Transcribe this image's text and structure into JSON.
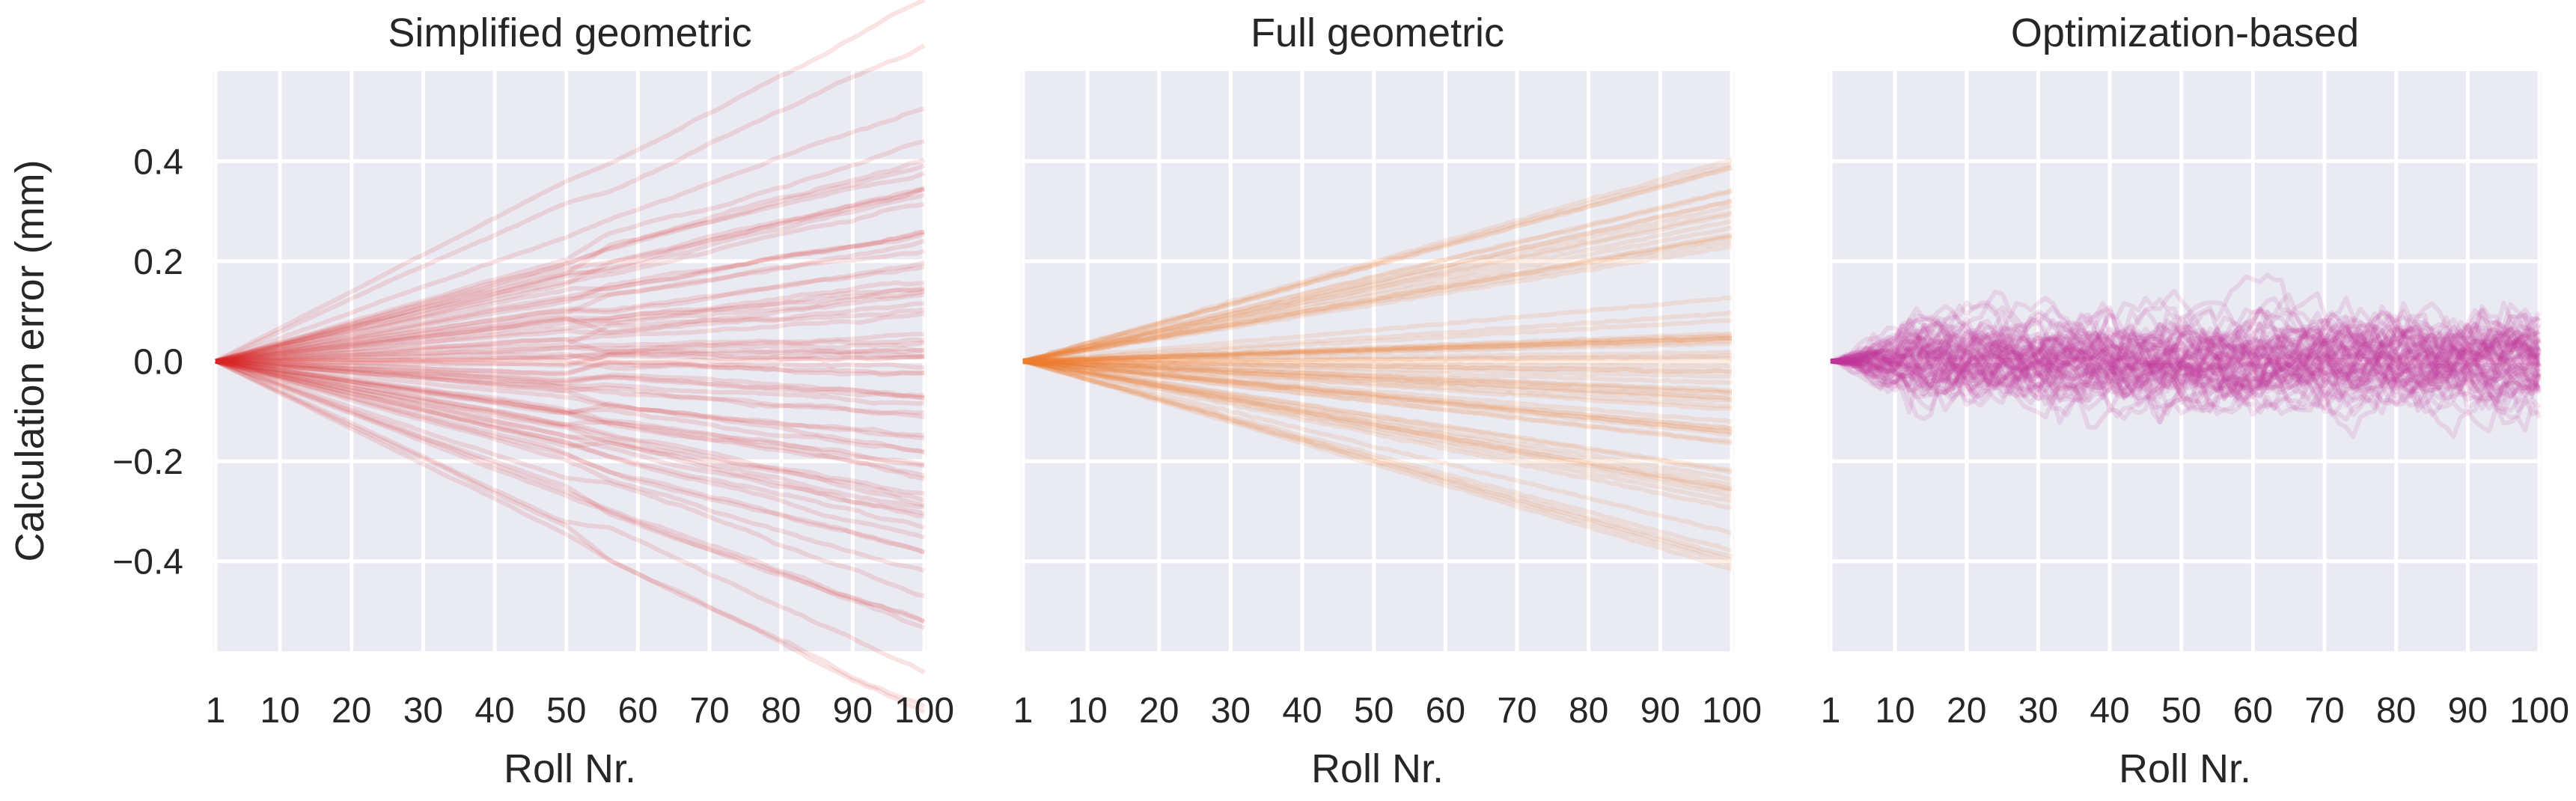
{
  "chart_data": [
    {
      "type": "line",
      "title": "Simplified geometric",
      "xlabel": "Roll Nr.",
      "ylabel": "Calculation error (mm)",
      "x_ticks": [
        "1",
        "10",
        "20",
        "30",
        "40",
        "50",
        "60",
        "70",
        "80",
        "90",
        "100"
      ],
      "y_ticks": [
        "0.4",
        "0.2",
        "0.0",
        "−0.2",
        "−0.4"
      ],
      "xlim": [
        1,
        100
      ],
      "ylim": [
        -0.58,
        0.58
      ],
      "grid": true,
      "color": "#d62728",
      "n_series": 70,
      "series_shape": "random walk starting at 0 at roll 1, diverging to about ±0.5 mm at roll 100, with a small kink near roll 50",
      "end_values_range": [
        -0.52,
        0.5
      ]
    },
    {
      "type": "line",
      "title": "Full geometric",
      "xlabel": "Roll Nr.",
      "ylabel": "",
      "x_ticks": [
        "1",
        "10",
        "20",
        "30",
        "40",
        "50",
        "60",
        "70",
        "80",
        "90",
        "100"
      ],
      "xlim": [
        1,
        100
      ],
      "ylim": [
        -0.58,
        0.58
      ],
      "grid": true,
      "color": "#f07830",
      "n_series": 70,
      "series_shape": "nearly straight lines fanning out from 0 at roll 1, end values between about −0.44 and 0.45 mm at roll 100",
      "end_values_range": [
        -0.44,
        0.45
      ]
    },
    {
      "type": "line",
      "title": "Optimization-based",
      "xlabel": "Roll Nr.",
      "ylabel": "",
      "x_ticks": [
        "1",
        "10",
        "20",
        "30",
        "40",
        "50",
        "60",
        "70",
        "80",
        "90",
        "100"
      ],
      "xlim": [
        1,
        100
      ],
      "ylim": [
        -0.58,
        0.58
      ],
      "grid": true,
      "color": "#c0399a",
      "n_series": 70,
      "series_shape": "bounded noisy band around 0, staying roughly within ±0.18 mm across all rolls",
      "end_values_range": [
        -0.18,
        0.18
      ]
    }
  ]
}
